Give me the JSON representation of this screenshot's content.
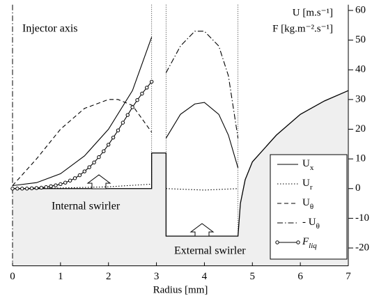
{
  "chart_data": {
    "type": "line",
    "xlabel": "Radius [mm]",
    "ylabel": [
      "U [m.s⁻¹]",
      "F [kg.m⁻².s⁻¹]"
    ],
    "annotations": [
      "Injector axis",
      "Internal swirler",
      "External swirler"
    ],
    "xlim": [
      0,
      7
    ],
    "xticks": [
      0,
      1,
      2,
      3,
      4,
      5,
      6,
      7
    ],
    "ylim": [
      -26,
      61
    ],
    "yticks": [
      -20,
      -10,
      0,
      10,
      20,
      30,
      40,
      50,
      60
    ],
    "boundaries": [
      2.9,
      3.2,
      4.7
    ],
    "wall": {
      "x": [
        0,
        2.9,
        2.9,
        3.2,
        3.2,
        4.7,
        4.75,
        4.85,
        5,
        5.5,
        6,
        6.5,
        7
      ],
      "y": [
        0,
        0,
        12,
        12,
        -16,
        -16,
        -5,
        3,
        9,
        18,
        25,
        29.5,
        33
      ]
    },
    "series": [
      {
        "name": "Ux",
        "color": "#000",
        "dash": "",
        "pieces": [
          {
            "x": [
              0,
              0.5,
              1,
              1.5,
              2,
              2.5,
              2.9
            ],
            "values": [
              1,
              2,
              5,
              11,
              20,
              33,
              51
            ]
          },
          {
            "x": [
              3.2,
              3.5,
              3.8,
              4.0,
              4.3,
              4.5,
              4.7
            ],
            "values": [
              17,
              25,
              28.5,
              29,
              25,
              18,
              7
            ]
          }
        ]
      },
      {
        "name": "Ur",
        "color": "#000",
        "dash": "1.5 2.5",
        "pieces": [
          {
            "x": [
              0,
              1,
              2,
              2.9
            ],
            "values": [
              0,
              0.2,
              0.6,
              1.5
            ]
          },
          {
            "x": [
              3.2,
              4,
              4.7
            ],
            "values": [
              0,
              -0.5,
              0
            ]
          }
        ]
      },
      {
        "name": "Uθ",
        "color": "#000",
        "dash": "6 4",
        "pieces": [
          {
            "x": [
              0,
              0.5,
              1,
              1.5,
              2,
              2.2,
              2.5,
              2.9
            ],
            "values": [
              1,
              10,
              20,
              27,
              30,
              30,
              28,
              19
            ]
          }
        ]
      },
      {
        "name": "- Uθ",
        "color": "#000",
        "dash": "8 3 1.5 3",
        "pieces": [
          {
            "x": [
              3.2,
              3.5,
              3.8,
              4,
              4.3,
              4.5,
              4.7
            ],
            "values": [
              39,
              48,
              53,
              53,
              48,
              38,
              17
            ]
          }
        ]
      },
      {
        "name": "Fliq",
        "color": "#000",
        "dash": "",
        "markers": true,
        "pieces": [
          {
            "x": [
              0,
              0.1,
              0.2,
              0.3,
              0.4,
              0.5,
              0.6,
              0.7,
              0.8,
              0.9,
              1.0,
              1.1,
              1.2,
              1.3,
              1.4,
              1.5,
              1.6,
              1.7,
              1.8,
              1.9,
              2.0,
              2.1,
              2.2,
              2.3,
              2.4,
              2.5,
              2.6,
              2.7,
              2.8,
              2.9
            ],
            "values": [
              0,
              0,
              0,
              0,
              0.1,
              0.2,
              0.3,
              0.5,
              0.8,
              1.1,
              1.5,
              2,
              2.7,
              3.5,
              4.5,
              5.8,
              7.2,
              8.8,
              10.6,
              12.6,
              14.8,
              17.2,
              19.6,
              22.2,
              24.8,
              27.4,
              29.8,
              32,
              34,
              36
            ]
          }
        ]
      }
    ]
  }
}
